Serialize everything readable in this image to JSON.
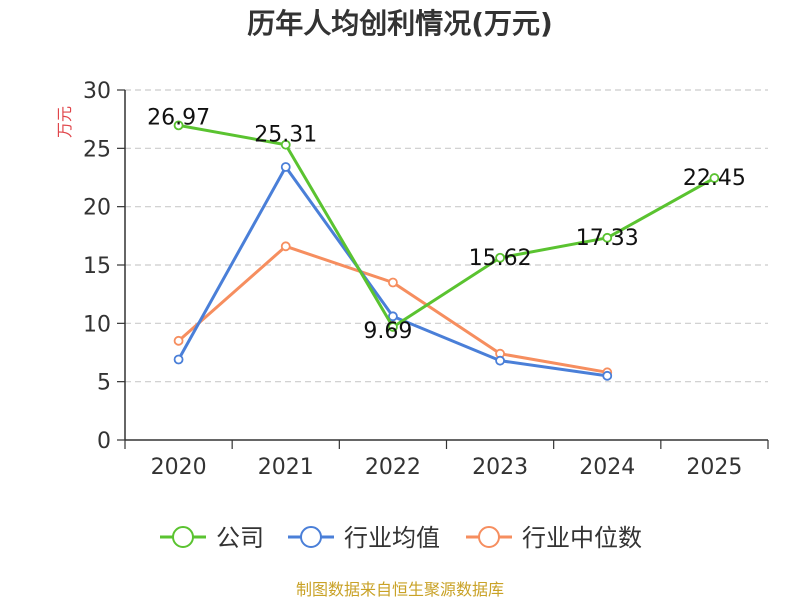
{
  "chart_data": {
    "type": "line",
    "title": "历年人均创利情况(万元)",
    "xlabel": "",
    "ylabel": "万元",
    "categories": [
      "2020",
      "2021",
      "2022",
      "2023",
      "2024",
      "2025"
    ],
    "ylim": [
      0,
      30
    ],
    "yticks": [
      0,
      5,
      10,
      15,
      20,
      25,
      30
    ],
    "grid": true,
    "legend_position": "bottom",
    "series": [
      {
        "name": "公司",
        "color": "#5ac330",
        "values": [
          26.97,
          25.31,
          9.69,
          15.62,
          17.33,
          22.45
        ],
        "labels": [
          "26.97",
          "25.31",
          "9.69",
          "15.62",
          "17.33",
          "22.45"
        ]
      },
      {
        "name": "行业均值",
        "color": "#4a7fd8",
        "values": [
          6.9,
          23.4,
          10.6,
          6.8,
          5.5,
          null
        ]
      },
      {
        "name": "行业中位数",
        "color": "#f68e5f",
        "values": [
          8.5,
          16.6,
          13.5,
          7.4,
          5.8,
          null
        ]
      }
    ],
    "source": "制图数据来自恒生聚源数据库"
  }
}
